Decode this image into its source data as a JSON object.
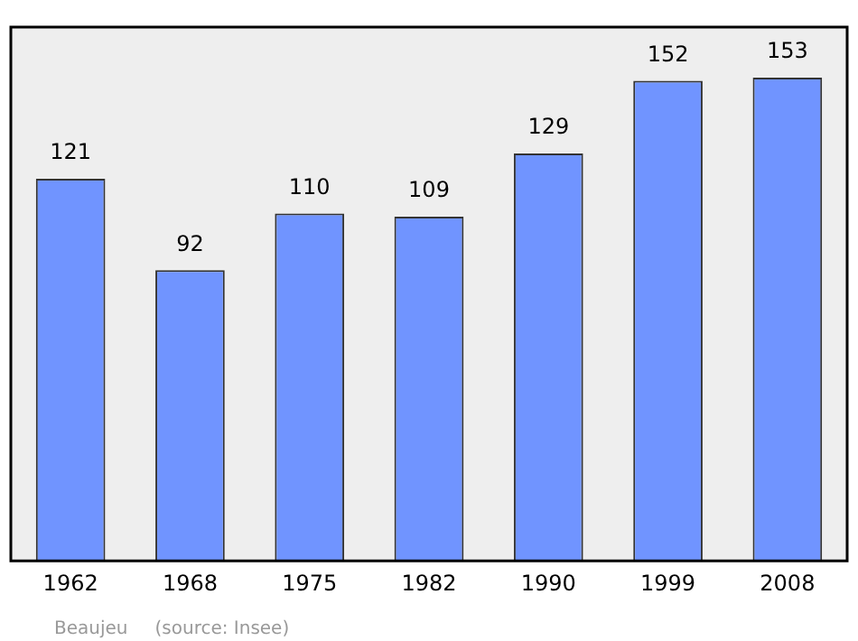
{
  "chart_data": {
    "type": "bar",
    "categories": [
      "1962",
      "1968",
      "1975",
      "1982",
      "1990",
      "1999",
      "2008"
    ],
    "values": [
      121,
      92,
      110,
      109,
      129,
      152,
      153
    ],
    "color": "#7094ff",
    "ylim": [
      0,
      169
    ],
    "data_labels": true,
    "grid": false,
    "tick_labels": "x",
    "annotations": [
      "Beaujeu",
      "(source: Insee)"
    ]
  }
}
